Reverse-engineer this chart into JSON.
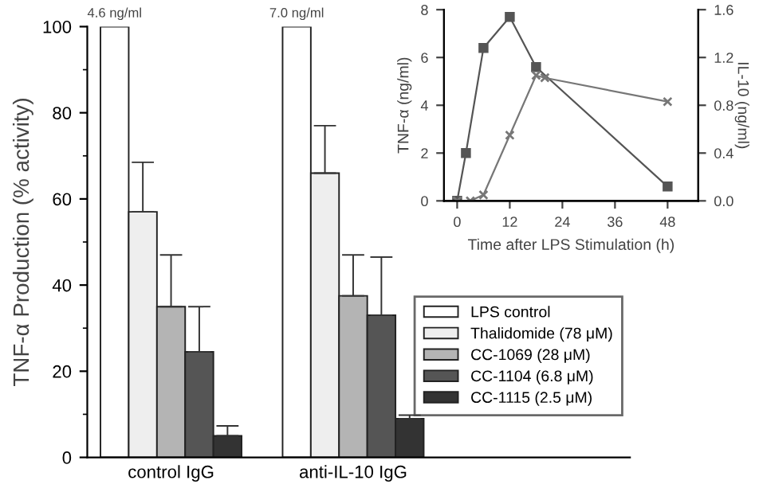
{
  "chart_data": [
    {
      "type": "bar",
      "ylabel": "TNF-α Production (% activity)",
      "categories": [
        "control IgG",
        "anti-IL-10 IgG"
      ],
      "series": [
        {
          "name": "LPS control",
          "color": "#ffffff",
          "values": [
            100,
            100
          ]
        },
        {
          "name": "Thalidomide (78 μM)",
          "color": "#eeeeee",
          "values": [
            57,
            66
          ],
          "errors": [
            [
              57,
              68.5
            ],
            [
              66,
              77
            ]
          ]
        },
        {
          "name": "CC-1069 (28 μM)",
          "color": "#b4b4b4",
          "values": [
            35,
            37.5
          ],
          "errors": [
            [
              35,
              47
            ],
            [
              37.5,
              47
            ]
          ]
        },
        {
          "name": "CC-1104 (6.8 μM)",
          "color": "#555555",
          "values": [
            24.5,
            33
          ],
          "errors": [
            [
              24.5,
              35
            ],
            [
              33,
              46.5
            ]
          ]
        },
        {
          "name": "CC-1115 (2.5 μM)",
          "color": "#333333",
          "values": [
            5,
            9
          ],
          "errors": [
            [
              5,
              7.3
            ],
            [
              9,
              9.8
            ]
          ]
        }
      ],
      "ylim": [
        0,
        100
      ],
      "yticks": [
        0,
        20,
        40,
        60,
        80,
        100
      ],
      "grid": false,
      "legend": "bottom right",
      "annotations": [
        "4.6 ng/ml",
        "7.0 ng/ml"
      ]
    },
    {
      "type": "line",
      "xlabel": "Time after LPS Stimulation (h)",
      "ylabel": "TNF-α (ng/ml)",
      "y2label": "IL-10 (ng/ml)",
      "series": [
        {
          "color": "#555555",
          "marker": "square",
          "x": [
            0,
            2,
            6,
            12,
            18,
            48
          ],
          "values": [
            0,
            2,
            6.4,
            7.7,
            5.6,
            0.6
          ]
        },
        {
          "color": "#777777",
          "marker": "cross",
          "axis": "y2",
          "x": [
            0,
            3,
            6,
            12,
            18,
            20,
            48
          ],
          "values": [
            0,
            0,
            0.05,
            0.55,
            1.05,
            1.03,
            0.83
          ]
        }
      ],
      "xlim": [
        -3,
        55
      ],
      "xticks": [
        0,
        12,
        24,
        36,
        48
      ],
      "ylim": [
        0,
        8
      ],
      "yticks": [
        0,
        2,
        4,
        6,
        8
      ],
      "y2lim": [
        0,
        1.6
      ],
      "y2ticks": [
        {
          "value": 0,
          "label": "0.0"
        },
        {
          "value": 0.4,
          "label": "0.4"
        },
        {
          "value": 0.8,
          "label": "0.8"
        },
        {
          "value": 1.2,
          "label": "1.2"
        },
        {
          "value": 1.6,
          "label": "1.6"
        }
      ],
      "grid": false
    }
  ]
}
